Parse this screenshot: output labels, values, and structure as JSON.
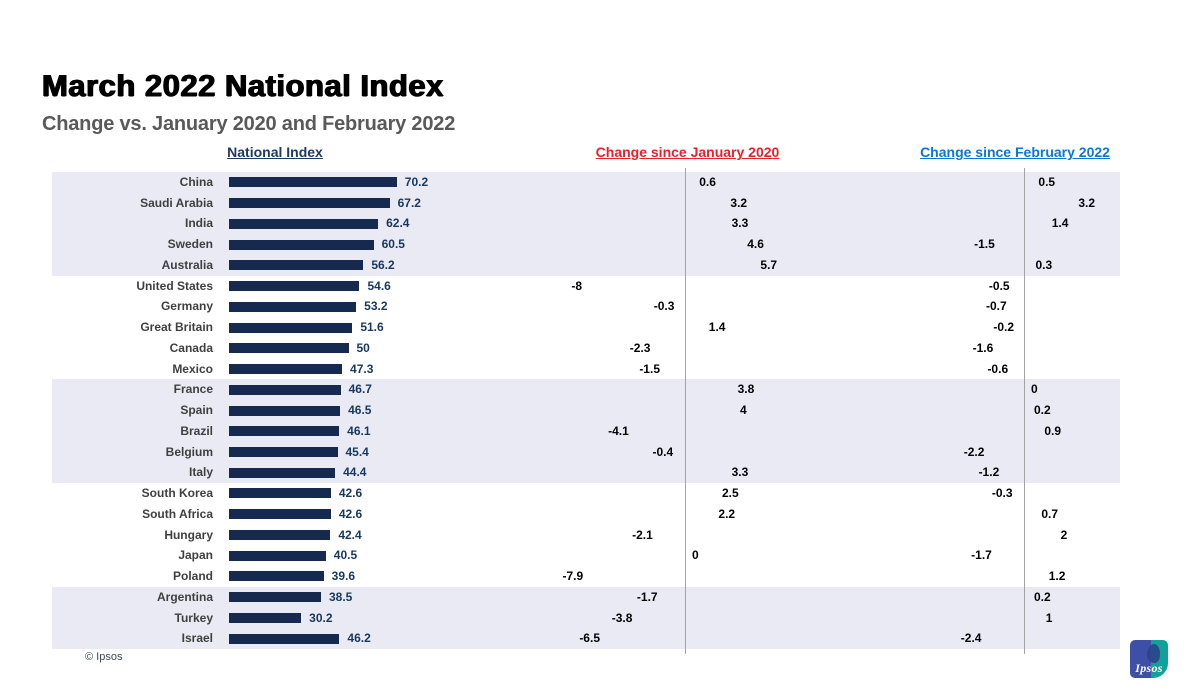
{
  "slide": {
    "title": "March 2022 National Index",
    "subtitle": "Change vs. January 2020 and February 2022",
    "copyright": "© Ipsos",
    "logo_text": "Ipsos"
  },
  "columns": {
    "index": "National Index",
    "jan2020": "Change since January 2020",
    "feb2022": "Change since February 2022"
  },
  "colors": {
    "navy_bar": "#152a4e",
    "navy_text": "#17375e",
    "navy_header": "#1f3864",
    "red_bar": "#c00000",
    "red_text": "#d40000",
    "red_header": "#e8202e",
    "blue_bar": "#0e76bd",
    "blue_text": "#0c76cc",
    "blue_header": "#0b77d2",
    "band": "#e9eaf4",
    "axis_line": "#a3a3a3",
    "country_label": "#3f3f3f",
    "subtitle_text": "#595959",
    "logo_indigo": "#3e4fa8",
    "logo_teal": "#12a19a"
  },
  "chart_data": {
    "type": "bar",
    "orientation": "horizontal",
    "title": "March 2022 National Index",
    "subtitle": "Change vs. January 2020 and February 2022",
    "grid": false,
    "legend_position": "none",
    "value_labels": "at bar ends",
    "categories": [
      "China",
      "Saudi Arabia",
      "India",
      "Sweden",
      "Australia",
      "United States",
      "Germany",
      "Great Britain",
      "Canada",
      "Mexico",
      "France",
      "Spain",
      "Brazil",
      "Belgium",
      "Italy",
      "South Korea",
      "South Africa",
      "Hungary",
      "Japan",
      "Poland",
      "Argentina",
      "Turkey",
      "Israel"
    ],
    "series": [
      {
        "name": "National Index",
        "values": [
          70.2,
          67.2,
          62.4,
          60.5,
          56.2,
          54.6,
          53.2,
          51.6,
          50,
          47.3,
          46.7,
          46.5,
          46.1,
          45.4,
          44.4,
          42.6,
          42.6,
          42.4,
          40.5,
          39.6,
          38.5,
          30.2,
          46.2
        ]
      },
      {
        "name": "Change since January 2020",
        "values": [
          0.6,
          3.2,
          3.3,
          4.6,
          5.7,
          -8,
          -0.3,
          1.4,
          -2.3,
          -1.5,
          3.8,
          4,
          -4.1,
          -0.4,
          3.3,
          2.5,
          2.2,
          -2.1,
          0,
          -7.9,
          -1.7,
          -3.8,
          -6.5
        ]
      },
      {
        "name": "Change since February 2022",
        "values": [
          0.5,
          3.2,
          1.4,
          -1.5,
          0.3,
          -0.5,
          -0.7,
          -0.2,
          -1.6,
          -0.6,
          0,
          0.2,
          0.9,
          -2.2,
          -1.2,
          -0.3,
          0.7,
          2,
          -1.7,
          1.2,
          0.2,
          1,
          -2.4
        ]
      }
    ],
    "shaded_row_groups": [
      [
        0,
        4
      ],
      [
        10,
        14
      ],
      [
        20,
        22
      ]
    ]
  }
}
